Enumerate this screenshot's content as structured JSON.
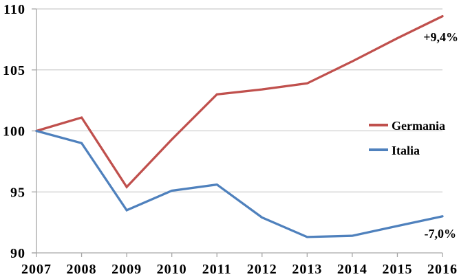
{
  "chart_data": {
    "type": "line",
    "x": [
      "2007",
      "2008",
      "2009",
      "2010",
      "2011",
      "2012",
      "2013",
      "2014",
      "2015",
      "2016"
    ],
    "series": [
      {
        "name": "Germania",
        "color": "#C0504D",
        "values": [
          100,
          101.1,
          95.4,
          99.3,
          103.0,
          103.4,
          103.9,
          105.7,
          107.6,
          109.4
        ]
      },
      {
        "name": "Italia",
        "color": "#4F81BD",
        "values": [
          100,
          99.0,
          93.5,
          95.1,
          95.6,
          92.9,
          91.3,
          91.4,
          92.2,
          93.0
        ]
      }
    ],
    "title": "",
    "xlabel": "",
    "ylabel": "",
    "ylim": [
      90,
      110
    ],
    "yticks": [
      90,
      95,
      100,
      105,
      110
    ],
    "grid": true,
    "legend_position": "inside-right",
    "annotations": [
      {
        "text": "+9,4%",
        "series": "Germania"
      },
      {
        "text": "-7,0%",
        "series": "Italia"
      }
    ],
    "axis_color": "#A6A6A6",
    "gridline_color": "#BFBFBF",
    "text_color": "#000000",
    "background_color": "#FFFFFF"
  }
}
